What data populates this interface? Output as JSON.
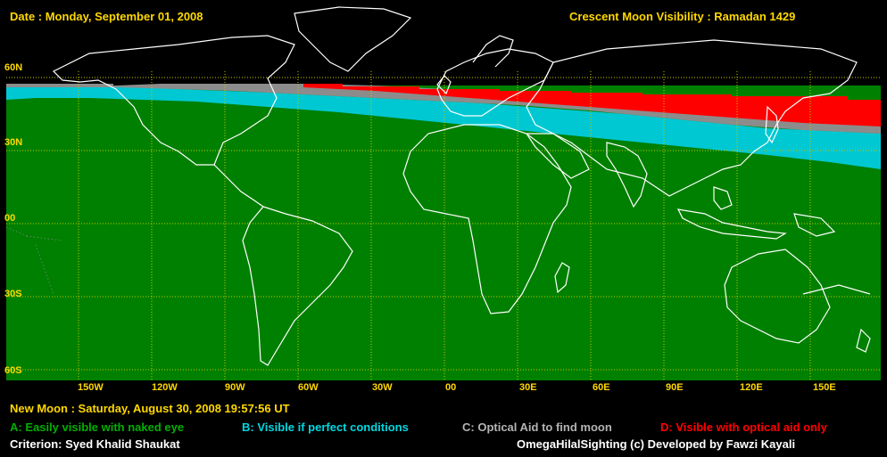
{
  "header": {
    "date": "Date : Monday, September 01, 2008",
    "title": "Crescent Moon Visibility : Ramadan  1429"
  },
  "map": {
    "lat_labels": [
      "60N",
      "30N",
      "00",
      "30S",
      "60S"
    ],
    "lon_labels": [
      "150W",
      "120W",
      "90W",
      "60W",
      "30W",
      "00",
      "30E",
      "60E",
      "90E",
      "120E",
      "150E"
    ],
    "colors": {
      "zone_a": "#008000",
      "zone_b": "#00c8d2",
      "zone_c": "#8c8c8c",
      "zone_d": "#ff0000",
      "grid": "#c8c800",
      "coastline": "#ffffff",
      "background": "#000000"
    }
  },
  "footer": {
    "new_moon": "New Moon : Saturday, August 30, 2008  19:57:56  UT",
    "legend": [
      {
        "text": "A: Easily visible with naked eye",
        "color": "#00b000"
      },
      {
        "text": "B: Visible if perfect conditions",
        "color": "#00d8e0"
      },
      {
        "text": "C: Optical Aid to find moon",
        "color": "#b4b4b4"
      },
      {
        "text": "D: Visible with optical aid only",
        "color": "#ff0000"
      }
    ],
    "criterion": "Criterion: Syed Khalid Shaukat",
    "credit": "OmegaHilalSighting  (c)  Developed by Fawzi Kayali"
  }
}
